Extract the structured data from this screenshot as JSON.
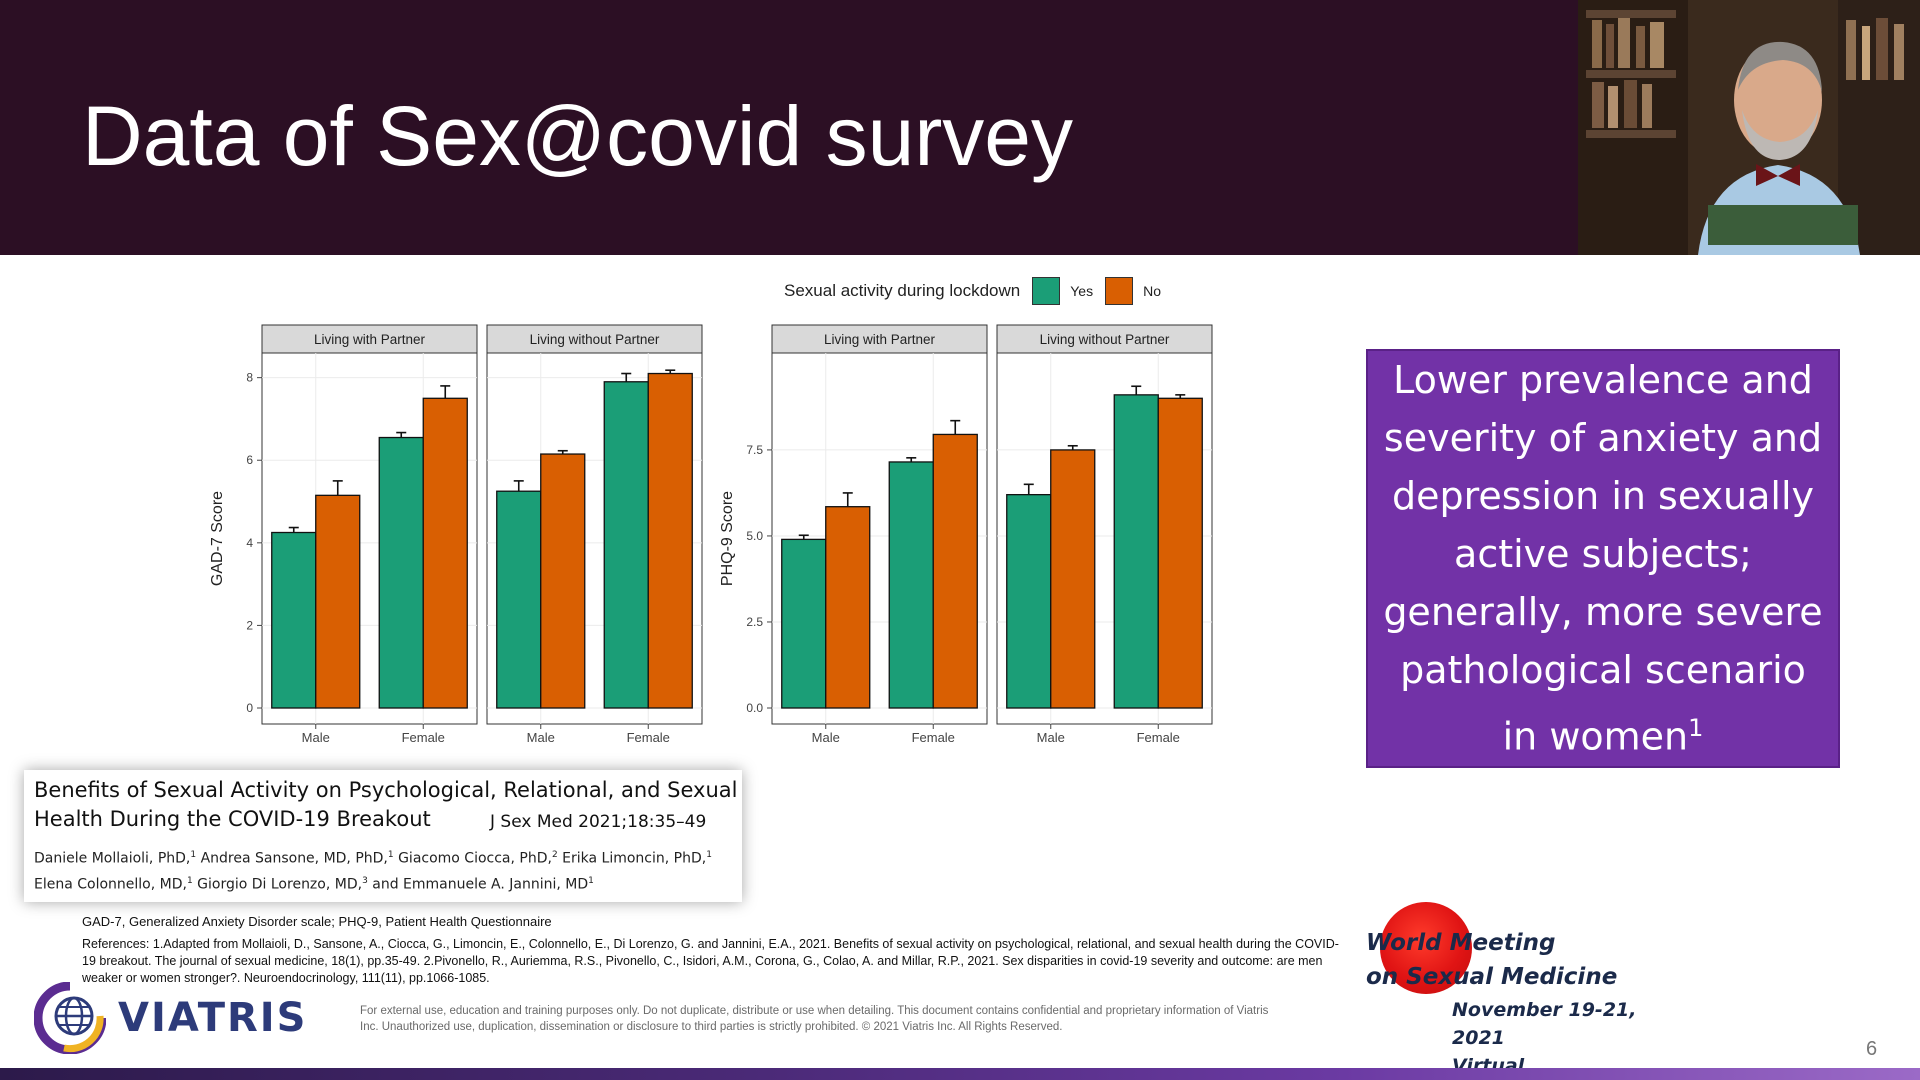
{
  "slide": {
    "title": "Data of Sex@covid survey",
    "page_number": "6"
  },
  "legend": {
    "title": "Sexual activity during lockdown",
    "items": [
      {
        "label": "Yes",
        "color": "#1b9e77"
      },
      {
        "label": "No",
        "color": "#d95f02"
      }
    ]
  },
  "callout": {
    "text": "Lower prevalence and severity of anxiety and depression in sexually active subjects; generally, more severe pathological scenario in women",
    "superscript": "1"
  },
  "citation": {
    "title": "Benefits of Sexual Activity on Psychological, Relational, and Sexual Health During the COVID-19 Breakout",
    "journal": "J Sex Med 2021;18:35–49",
    "authors": [
      {
        "name": "Daniele Mollaioli, PhD,",
        "sup": "1"
      },
      {
        "name": "Andrea Sansone, MD, PhD,",
        "sup": "1"
      },
      {
        "name": "Giacomo Ciocca, PhD,",
        "sup": "2"
      },
      {
        "name": "Erika Limoncin, PhD,",
        "sup": "1"
      },
      {
        "name": "Elena Colonnello, MD,",
        "sup": "1"
      },
      {
        "name": "Giorgio Di Lorenzo, MD,",
        "sup": "3"
      },
      {
        "name": "and Emmanuele A. Jannini, MD",
        "sup": "1"
      }
    ]
  },
  "footnotes": {
    "abbreviations": "GAD-7, Generalized Anxiety Disorder scale; PHQ-9, Patient Health Questionnaire",
    "references": "References: 1.Adapted from Mollaioli, D., Sansone, A., Ciocca, G., Limoncin, E., Colonnello, E., Di Lorenzo, G. and Jannini, E.A., 2021. Benefits of sexual activity on psychological, relational, and sexual health during the COVID-19 breakout. The journal of sexual medicine, 18(1), pp.35-49. 2.Pivonello, R., Auriemma, R.S., Pivonello, C., Isidori, A.M., Corona, G., Colao, A. and Millar, R.P., 2021. Sex disparities in covid-19 severity and outcome: are men weaker or women stronger?. Neuroendocrinology, 111(11), pp.1066-1085."
  },
  "branding": {
    "logo_text": "VIATRIS",
    "disclaimer": "For external use, education and training purposes only. Do not duplicate, distribute or use when detailing. This document contains confidential and proprietary information of Viatris Inc. Unauthorized use, duplication, dissemination or disclosure to third parties is strictly prohibited. © 2021 Viatris Inc. All Rights Reserved.",
    "event_line1": "World Meeting",
    "event_line2": "on Sexual Medicine",
    "event_dates": "November 19-21, 2021",
    "event_mode": "Virtual"
  },
  "chart_data": [
    {
      "type": "bar",
      "ylabel": "GAD-7 Score",
      "ylim": [
        0,
        8.5
      ],
      "yticks": [
        0,
        2,
        4,
        6,
        8
      ],
      "ytick_labels": [
        "0",
        "2",
        "4",
        "6",
        "8"
      ],
      "panels": [
        {
          "title": "Living with Partner",
          "categories": [
            "Male",
            "Female"
          ],
          "series": [
            {
              "name": "Yes",
              "values": [
                4.25,
                6.55
              ],
              "errors": [
                0.12,
                0.12
              ]
            },
            {
              "name": "No",
              "values": [
                5.15,
                7.5
              ],
              "errors": [
                0.35,
                0.3
              ]
            }
          ]
        },
        {
          "title": "Living without Partner",
          "categories": [
            "Male",
            "Female"
          ],
          "series": [
            {
              "name": "Yes",
              "values": [
                5.25,
                7.9
              ],
              "errors": [
                0.25,
                0.2
              ]
            },
            {
              "name": "No",
              "values": [
                6.15,
                8.1
              ],
              "errors": [
                0.08,
                0.08
              ]
            }
          ]
        }
      ]
    },
    {
      "type": "bar",
      "ylabel": "PHQ-9 Score",
      "ylim": [
        0,
        10.2
      ],
      "yticks": [
        0,
        2.5,
        5,
        7.5
      ],
      "ytick_labels": [
        "0.0",
        "2.5",
        "5.0",
        "7.5"
      ],
      "panels": [
        {
          "title": "Living with Partner",
          "categories": [
            "Male",
            "Female"
          ],
          "series": [
            {
              "name": "Yes",
              "values": [
                4.9,
                7.15
              ],
              "errors": [
                0.12,
                0.12
              ]
            },
            {
              "name": "No",
              "values": [
                5.85,
                7.95
              ],
              "errors": [
                0.4,
                0.4
              ]
            }
          ]
        },
        {
          "title": "Living without Partner",
          "categories": [
            "Male",
            "Female"
          ],
          "series": [
            {
              "name": "Yes",
              "values": [
                6.2,
                9.1
              ],
              "errors": [
                0.3,
                0.25
              ]
            },
            {
              "name": "No",
              "values": [
                7.5,
                9.0
              ],
              "errors": [
                0.12,
                0.1
              ]
            }
          ]
        }
      ]
    }
  ]
}
